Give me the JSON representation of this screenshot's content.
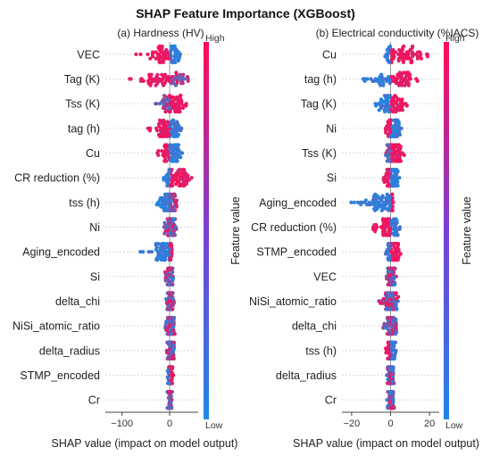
{
  "figure": {
    "title": "SHAP Feature Importance (XGBoost)"
  },
  "colors": {
    "low": "#1e88e5",
    "high": "#ff0d57",
    "grid": "#d9d9d9",
    "axis": "#999999"
  },
  "chart_data": [
    {
      "type": "scatter",
      "subtype": "shap-beeswarm",
      "title": "(a) Hardness (HV)",
      "xlabel": "SHAP value (impact on model output)",
      "xlim": [
        -135,
        60
      ],
      "xticks": [
        -100,
        0
      ],
      "colorbar": {
        "title": "Feature value",
        "low_label": "Low",
        "high_label": "High"
      },
      "features": [
        {
          "name": "VEC",
          "lo": -80,
          "hi": 30,
          "neg": "high",
          "pos": "low"
        },
        {
          "name": "Tag (K)",
          "lo": -100,
          "hi": 40,
          "neg": "high",
          "pos": "mixed"
        },
        {
          "name": "Tss (K)",
          "lo": -30,
          "hi": 35,
          "neg": "mixed",
          "pos": "high"
        },
        {
          "name": "tag (h)",
          "lo": -50,
          "hi": 30,
          "neg": "high",
          "pos": "low"
        },
        {
          "name": "Cu",
          "lo": -28,
          "hi": 28,
          "neg": "high",
          "pos": "low"
        },
        {
          "name": "CR reduction (%)",
          "lo": -15,
          "hi": 50,
          "neg": "low",
          "pos": "high"
        },
        {
          "name": "tss (h)",
          "lo": -30,
          "hi": 20,
          "neg": "low",
          "pos": "mixed"
        },
        {
          "name": "Ni",
          "lo": -12,
          "hi": 15,
          "neg": "mixed",
          "pos": "mixed"
        },
        {
          "name": "Aging_encoded",
          "lo": -65,
          "hi": 8,
          "neg": "low",
          "pos": "high"
        },
        {
          "name": "Si",
          "lo": -10,
          "hi": 10,
          "neg": "mixed",
          "pos": "mixed"
        },
        {
          "name": "delta_chi",
          "lo": -8,
          "hi": 10,
          "neg": "mixed",
          "pos": "mixed"
        },
        {
          "name": "NiSi_atomic_ratio",
          "lo": -10,
          "hi": 12,
          "neg": "mixed",
          "pos": "mixed"
        },
        {
          "name": "delta_radius",
          "lo": -8,
          "hi": 10,
          "neg": "mixed",
          "pos": "mixed"
        },
        {
          "name": "STMP_encoded",
          "lo": -6,
          "hi": 8,
          "neg": "low",
          "pos": "high"
        },
        {
          "name": "Cr",
          "lo": -5,
          "hi": 6,
          "neg": "mixed",
          "pos": "mixed"
        }
      ]
    },
    {
      "type": "scatter",
      "subtype": "shap-beeswarm",
      "title": "(b) Electrical conductivity (%IACS)",
      "xlabel": "SHAP value (impact on model output)",
      "xlim": [
        -25,
        25
      ],
      "xticks": [
        -20,
        0,
        20
      ],
      "colorbar": {
        "title": "Feature value",
        "low_label": "Low",
        "high_label": "High"
      },
      "features": [
        {
          "name": "Cu",
          "lo": -5,
          "hi": 22,
          "neg": "low",
          "pos": "high"
        },
        {
          "name": "tag (h)",
          "lo": -17,
          "hi": 14,
          "neg": "low",
          "pos": "high"
        },
        {
          "name": "Tag (K)",
          "lo": -12,
          "hi": 9,
          "neg": "low",
          "pos": "high"
        },
        {
          "name": "Ni",
          "lo": -3,
          "hi": 6,
          "neg": "high",
          "pos": "low"
        },
        {
          "name": "Tss (K)",
          "lo": -4,
          "hi": 7,
          "neg": "mixed",
          "pos": "high"
        },
        {
          "name": "Si",
          "lo": -4,
          "hi": 5,
          "neg": "high",
          "pos": "low"
        },
        {
          "name": "Aging_encoded",
          "lo": -21,
          "hi": 2,
          "neg": "low",
          "pos": "high"
        },
        {
          "name": "CR reduction (%)",
          "lo": -9,
          "hi": 5,
          "neg": "high",
          "pos": "low"
        },
        {
          "name": "STMP_encoded",
          "lo": -3,
          "hi": 6,
          "neg": "low",
          "pos": "high"
        },
        {
          "name": "VEC",
          "lo": -3,
          "hi": 3,
          "neg": "mixed",
          "pos": "mixed"
        },
        {
          "name": "NiSi_atomic_ratio",
          "lo": -6,
          "hi": 4,
          "neg": "mixed",
          "pos": "mixed"
        },
        {
          "name": "delta_chi",
          "lo": -4,
          "hi": 4,
          "neg": "mixed",
          "pos": "mixed"
        },
        {
          "name": "tss (h)",
          "lo": -3,
          "hi": 3,
          "neg": "high",
          "pos": "low"
        },
        {
          "name": "delta_radius",
          "lo": -2,
          "hi": 2,
          "neg": "mixed",
          "pos": "mixed"
        },
        {
          "name": "Cr",
          "lo": -2,
          "hi": 2,
          "neg": "mixed",
          "pos": "mixed"
        }
      ]
    }
  ]
}
